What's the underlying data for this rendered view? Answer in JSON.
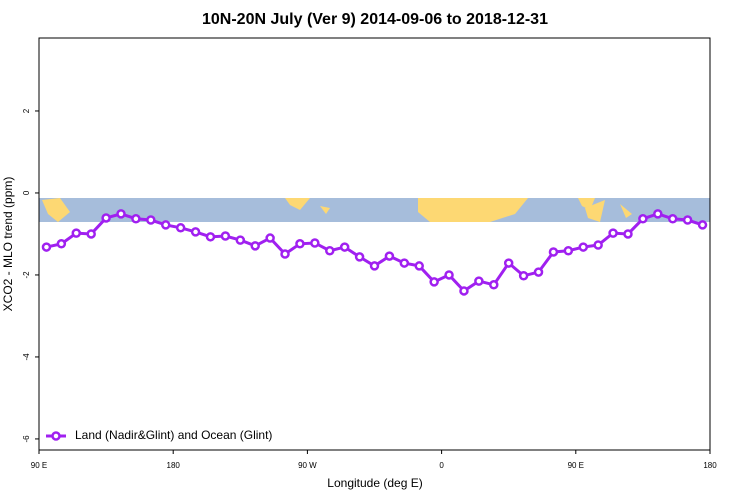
{
  "chart_data": {
    "type": "line",
    "title": "10N-20N July (Ver 9)   2014-09-06 to 2018-12-31",
    "x_label": "Longitude (deg E)",
    "y_label": "XCO2 - MLO trend (ppm)",
    "xlim": [
      90,
      540
    ],
    "ylim": [
      -6.27,
      3.78
    ],
    "xticks": [
      {
        "value": 90,
        "label": "90 E"
      },
      180,
      {
        "value": 270,
        "label": "90 W"
      },
      {
        "value": 360,
        "label": "0"
      },
      {
        "value": 450,
        "label": "90 E"
      },
      {
        "value": 540,
        "label": "180"
      }
    ],
    "yticks": [
      -6,
      -4,
      -2,
      0,
      2
    ],
    "legend": "bottom-left",
    "x": [
      95,
      105,
      115,
      125,
      135,
      145,
      155,
      165,
      175,
      185,
      195,
      205,
      215,
      225,
      235,
      245,
      255,
      265,
      275,
      285,
      295,
      305,
      315,
      325,
      335,
      345,
      355,
      365,
      375,
      385,
      395,
      405,
      415,
      425,
      435,
      445,
      455,
      465,
      475,
      485,
      495,
      505,
      515,
      525,
      535
    ],
    "series": [
      {
        "name": "Land (Nadir&Glint) and Ocean (Glint)",
        "color": "#a020f0",
        "values": [
          -1.32,
          -1.24,
          -0.98,
          -1.0,
          -0.61,
          -0.51,
          -0.63,
          -0.66,
          -0.78,
          -0.85,
          -0.95,
          -1.07,
          -1.05,
          -1.15,
          -1.29,
          -1.1,
          -1.49,
          -1.24,
          -1.22,
          -1.41,
          -1.32,
          -1.56,
          -1.78,
          -1.54,
          -1.71,
          -1.78,
          -2.17,
          -2.0,
          -2.39,
          -2.15,
          -2.24,
          -1.71,
          -2.02,
          -1.93,
          -1.44,
          -1.41,
          -1.32,
          -1.27,
          -0.98,
          -1.0,
          -0.63,
          -0.51,
          -0.63,
          -0.66,
          -0.78
        ]
      }
    ]
  }
}
